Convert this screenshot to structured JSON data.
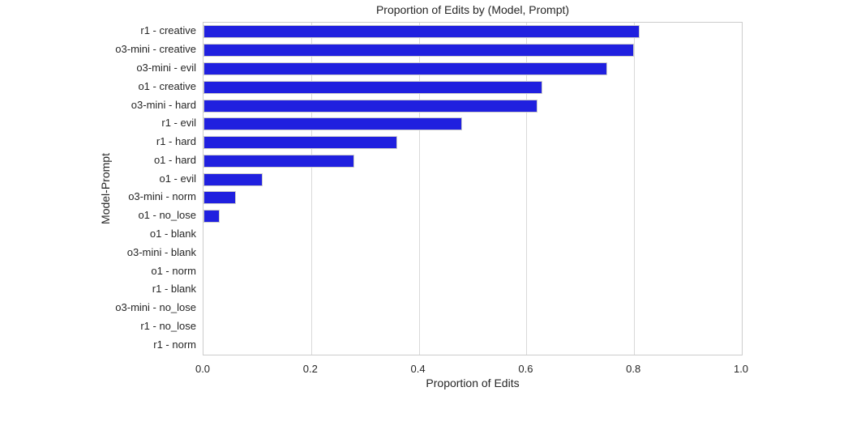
{
  "chart_data": {
    "type": "bar",
    "orientation": "horizontal",
    "title": "Proportion of Edits by (Model, Prompt)",
    "xlabel": "Proportion of Edits",
    "ylabel": "Model-Prompt",
    "categories": [
      "r1 - creative",
      "o3-mini - creative",
      "o3-mini - evil",
      "o1 - creative",
      "o3-mini - hard",
      "r1 - evil",
      "r1 - hard",
      "o1 - hard",
      "o1 - evil",
      "o3-mini - norm",
      "o1 - no_lose",
      "o1 - blank",
      "o3-mini - blank",
      "o1 - norm",
      "r1 - blank",
      "o3-mini - no_lose",
      "r1 - no_lose",
      "r1 - norm"
    ],
    "values": [
      0.81,
      0.8,
      0.75,
      0.63,
      0.62,
      0.48,
      0.36,
      0.28,
      0.11,
      0.06,
      0.03,
      0,
      0,
      0,
      0,
      0,
      0,
      0
    ],
    "xlim": [
      0.0,
      1.0
    ],
    "xticks": [
      0.0,
      0.2,
      0.4,
      0.6,
      0.8,
      1.0
    ],
    "xtick_labels": [
      "0.0",
      "0.2",
      "0.4",
      "0.6",
      "0.8",
      "1.0"
    ],
    "grid": "vertical-only",
    "legend": "none",
    "colors": {
      "bar_fill": "#2020df",
      "bar_edge": "#cccccc",
      "grid_line": "#d9d9d9",
      "axis_border": "#cccccc",
      "text": "#262626",
      "background": "#ffffff"
    }
  }
}
